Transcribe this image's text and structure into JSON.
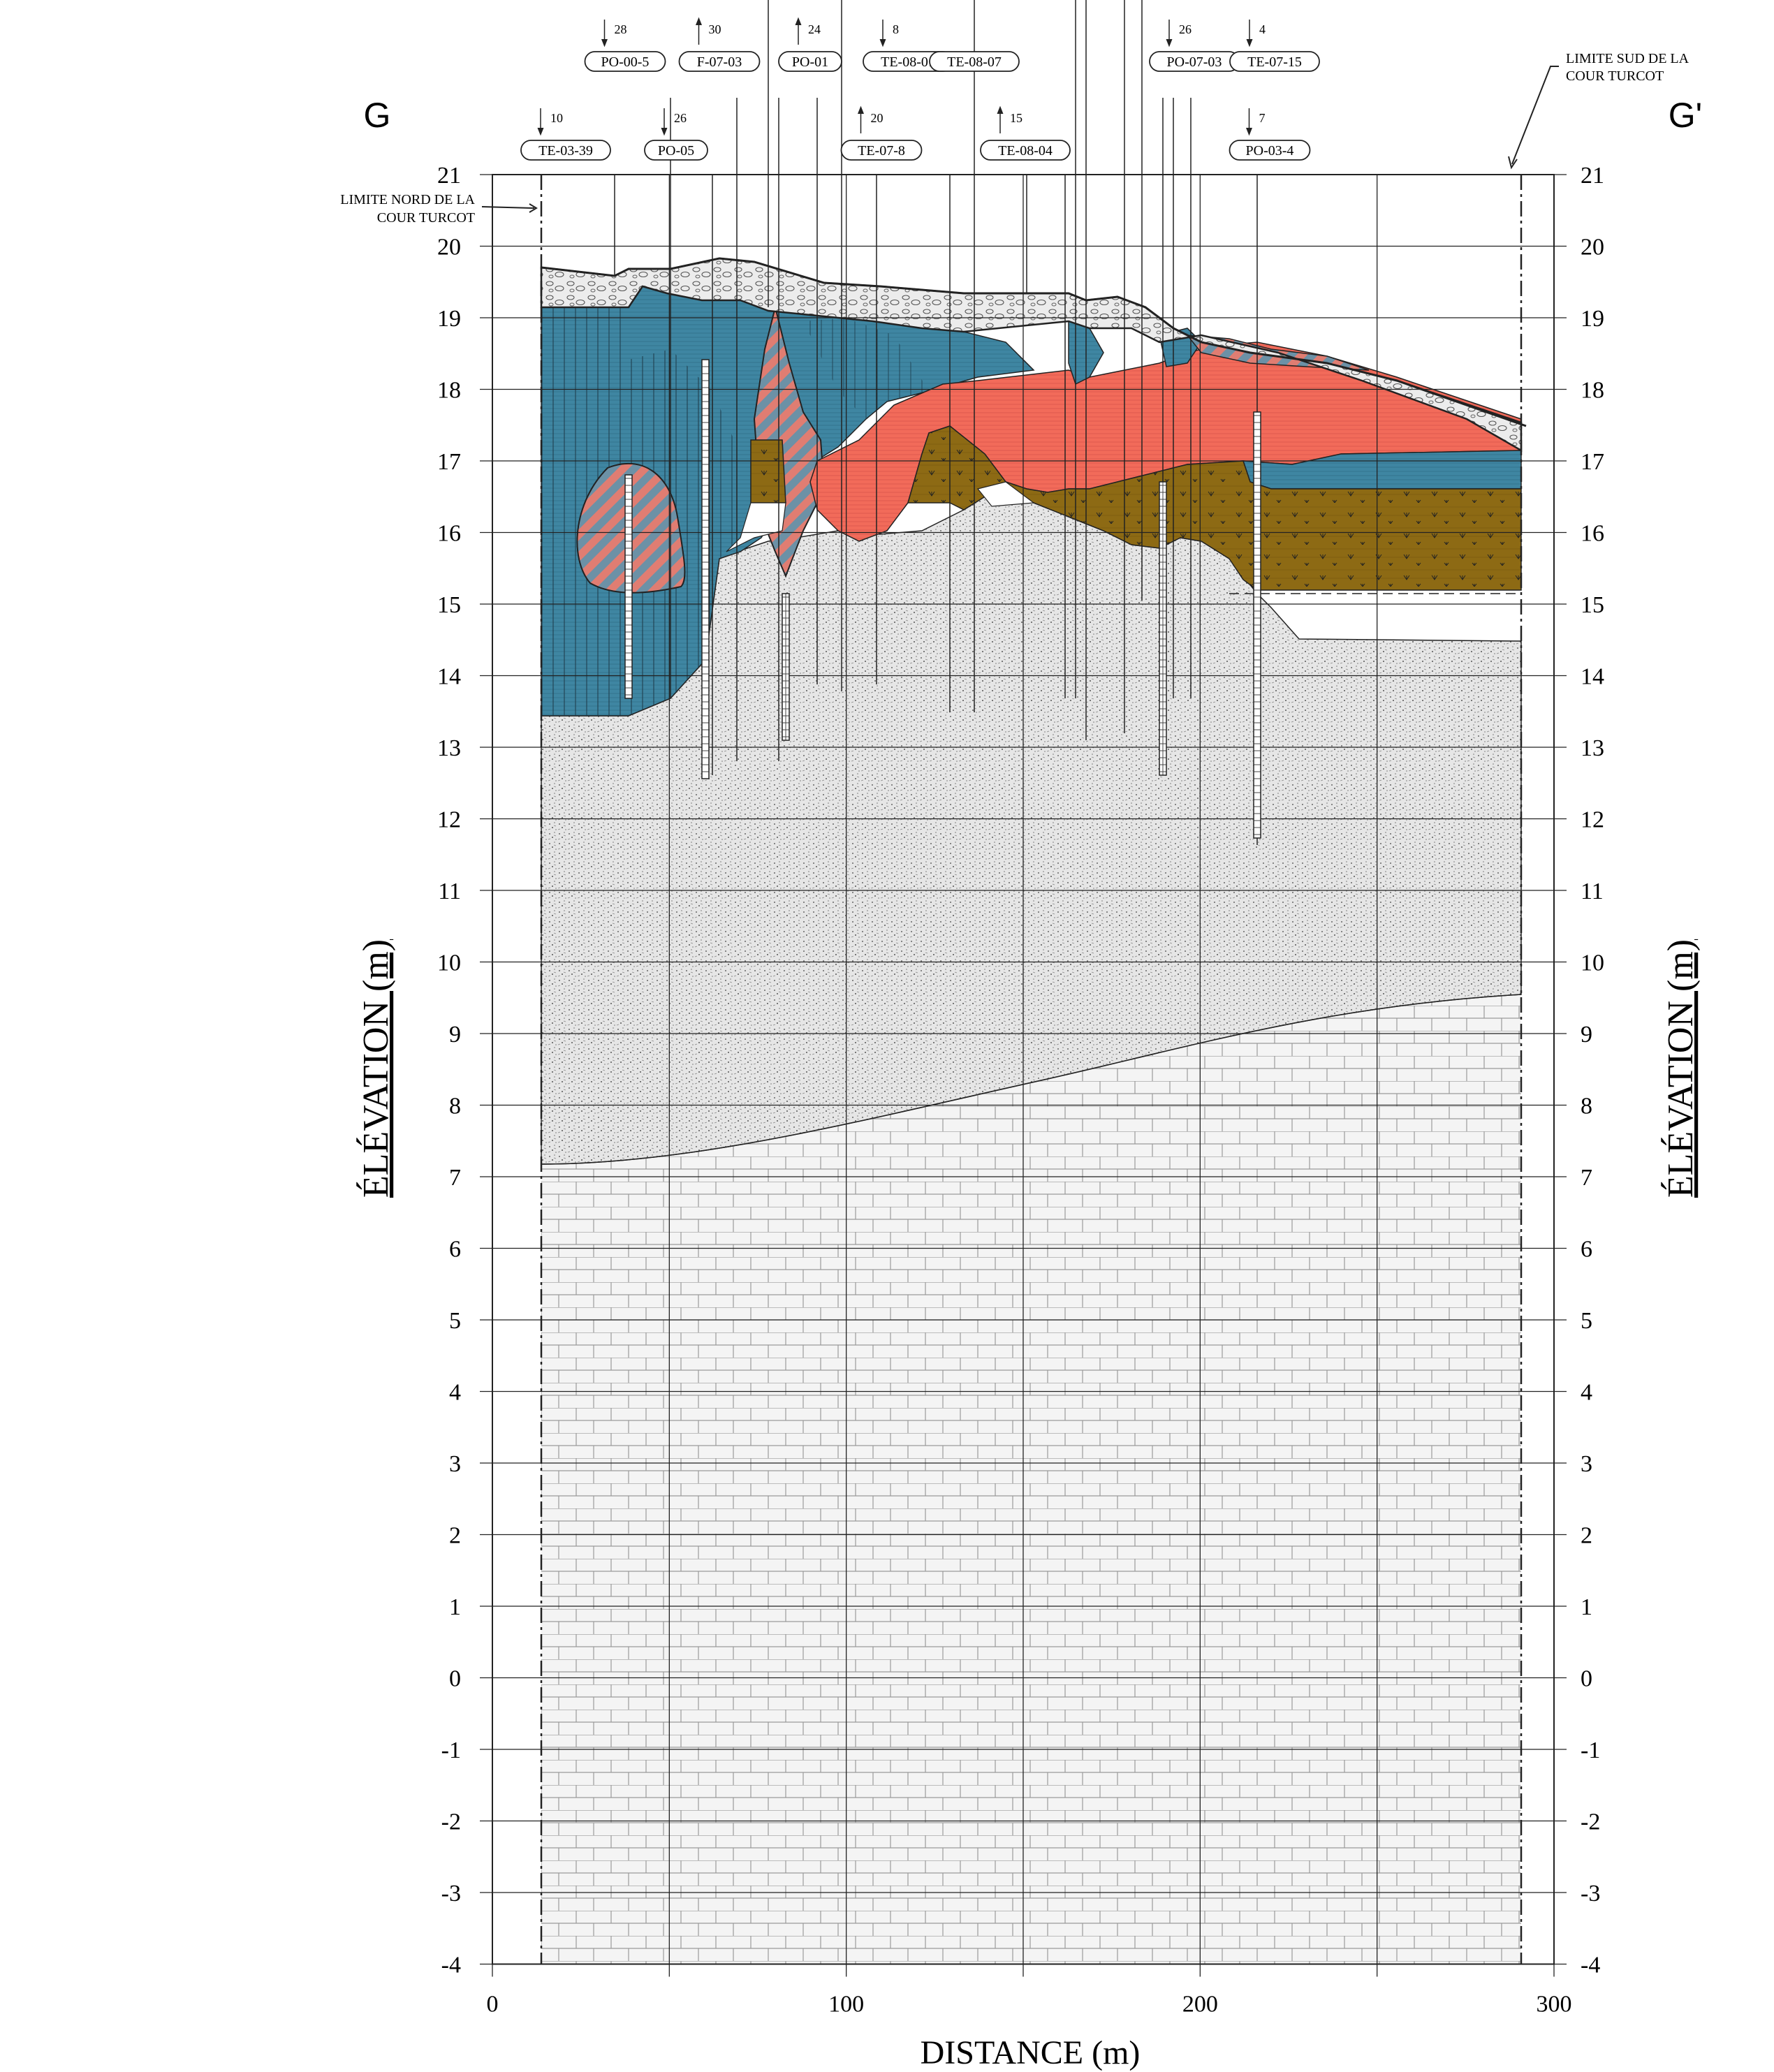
{
  "section_labels": {
    "left": "G",
    "right": "G'"
  },
  "axes": {
    "y_label": "ÉLÉVATION (m)",
    "x_label": "DISTANCE (m)",
    "y_ticks": [
      "21",
      "20",
      "19",
      "18",
      "17",
      "16",
      "15",
      "14",
      "13",
      "12",
      "11",
      "10",
      "9",
      "8",
      "7",
      "6",
      "5",
      "4",
      "3",
      "2",
      "1",
      "0",
      "-1",
      "-2",
      "-3",
      "-4"
    ],
    "x_ticks": [
      "0",
      "100",
      "200",
      "300"
    ]
  },
  "limits": {
    "north": [
      "LIMITE NORD DE LA",
      "COUR TURCOT"
    ],
    "south": [
      "LIMITE SUD DE LA",
      "COUR TURCOT"
    ]
  },
  "boreholes_upper": [
    {
      "id": "PO-00-5",
      "offset": "28"
    },
    {
      "id": "F-07-03",
      "offset": "30"
    },
    {
      "id": "PO-01",
      "offset": "24"
    },
    {
      "id": "TE-08-01",
      "offset": "8"
    },
    {
      "id": "TE-08-07",
      "offset": ""
    },
    {
      "id": "PO-07-03",
      "offset": "26"
    },
    {
      "id": "TE-07-15",
      "offset": "4"
    }
  ],
  "boreholes_lower": [
    {
      "id": "TE-03-39",
      "offset": "10"
    },
    {
      "id": "PO-05",
      "offset": "26"
    },
    {
      "id": "TE-07-8",
      "offset": "20"
    },
    {
      "id": "TE-08-04",
      "offset": "15"
    },
    {
      "id": "PO-03-4",
      "offset": "7"
    }
  ],
  "colors": {
    "fill": "#d6d6d6",
    "clay_blue": "#3f86a2",
    "silt_red": "#f26b5a",
    "peat_brown": "#8d6a14",
    "till_grey": "#e2e2e2",
    "rock_grey": "#f3f3f3",
    "grid": "#222222"
  }
}
